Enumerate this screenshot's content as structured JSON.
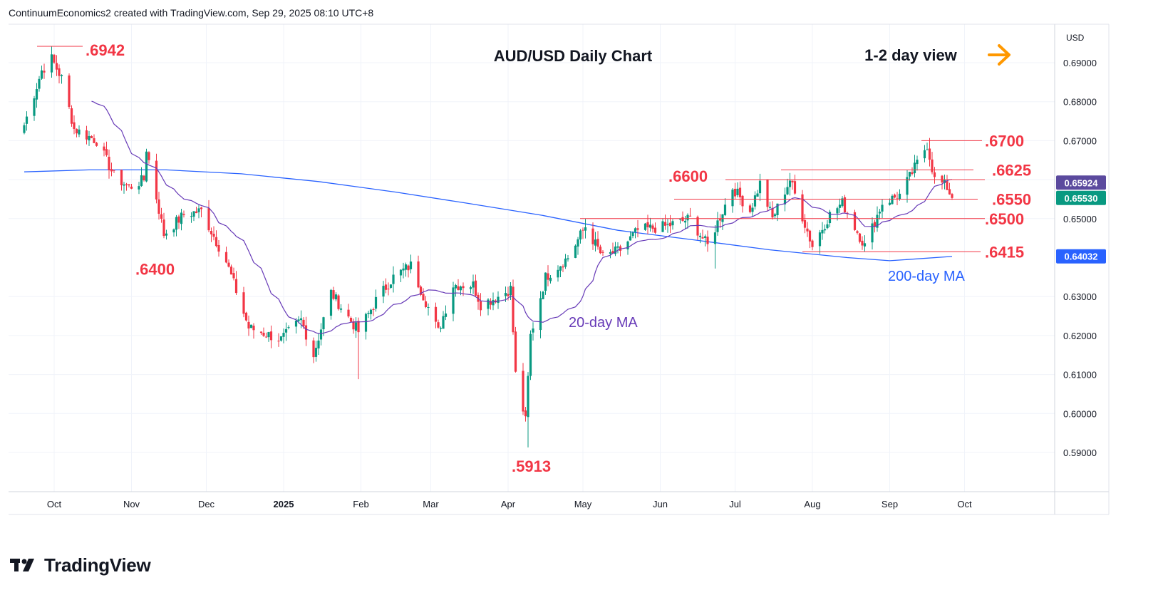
{
  "header": {
    "attribution": "ContinuumEconomics2 created with TradingView.com, Sep 29, 2025 08:10 UTC+8"
  },
  "footer": {
    "brand": "TradingView",
    "logo_icon": "tradingview-logo-icon"
  },
  "colors": {
    "up": "#089981",
    "down": "#f23645",
    "ma20": "#673ab7",
    "ma200": "#2962ff",
    "level": "#f23645",
    "arrow": "#ff9800",
    "tag_ma20": "#5b4a9e",
    "tag_price": "#089981",
    "tag_ma200": "#2962ff"
  },
  "chart_data": {
    "type": "candlestick",
    "title": "AUD/USD Daily Chart",
    "view_label": "1-2 day view",
    "view_icon": "arrow-right-icon",
    "currency_label": "USD",
    "ylim": [
      0.58,
      0.698
    ],
    "y_ticks": [
      "0.69000",
      "0.68000",
      "0.67000",
      "0.66000",
      "0.65000",
      "0.63000",
      "0.62000",
      "0.61000",
      "0.60000",
      "0.59000"
    ],
    "x_ticks": [
      "Oct",
      "Nov",
      "Dec",
      "2025",
      "Feb",
      "Mar",
      "Apr",
      "May",
      "Jun",
      "Jul",
      "Aug",
      "Sep",
      "Oct"
    ],
    "price_tags": [
      {
        "label": "0.65924",
        "value": 0.65924,
        "kind": "ma20"
      },
      {
        "label": "0.65530",
        "value": 0.6553,
        "kind": "price"
      },
      {
        "label": "0.64032",
        "value": 0.64032,
        "kind": "ma200"
      }
    ],
    "levels": [
      {
        "label": ".6942",
        "value": 0.6942
      },
      {
        "label": ".6700",
        "value": 0.67
      },
      {
        "label": ".6625",
        "value": 0.6625
      },
      {
        "label": ".6600",
        "value": 0.66
      },
      {
        "label": ".6550",
        "value": 0.655
      },
      {
        "label": ".6500",
        "value": 0.65
      },
      {
        "label": ".6415",
        "value": 0.6415
      },
      {
        "label": ".6400",
        "value": 0.64
      },
      {
        "label": ".5913",
        "value": 0.5913
      }
    ],
    "series_labels": {
      "ma20": "20-day MA",
      "ma200": "200-day MA"
    },
    "anchors": [
      [
        "2024-09-19",
        0.674
      ],
      [
        "2024-09-26",
        0.688
      ],
      [
        "2024-09-30",
        0.691
      ],
      [
        "2024-10-04",
        0.686
      ],
      [
        "2024-10-09",
        0.673
      ],
      [
        "2024-10-18",
        0.67
      ],
      [
        "2024-10-25",
        0.661
      ],
      [
        "2024-10-31",
        0.658
      ],
      [
        "2024-11-06",
        0.66
      ],
      [
        "2024-11-07",
        0.668
      ],
      [
        "2024-11-14",
        0.646
      ],
      [
        "2024-11-22",
        0.651
      ],
      [
        "2024-11-29",
        0.652
      ],
      [
        "2024-12-09",
        0.639
      ],
      [
        "2024-12-18",
        0.622
      ],
      [
        "2024-12-31",
        0.619
      ],
      [
        "2025-01-08",
        0.624
      ],
      [
        "2025-01-13",
        0.615
      ],
      [
        "2025-01-20",
        0.631
      ],
      [
        "2025-01-31",
        0.621
      ],
      [
        "2025-02-07",
        0.629
      ],
      [
        "2025-02-14",
        0.635
      ],
      [
        "2025-02-21",
        0.638
      ],
      [
        "2025-03-04",
        0.621
      ],
      [
        "2025-03-10",
        0.633
      ],
      [
        "2025-03-18",
        0.633
      ],
      [
        "2025-03-21",
        0.628
      ],
      [
        "2025-03-28",
        0.63
      ],
      [
        "2025-04-02",
        0.632
      ],
      [
        "2025-04-04",
        0.61
      ],
      [
        "2025-04-08",
        0.598
      ],
      [
        "2025-04-10",
        0.62
      ],
      [
        "2025-04-16",
        0.635
      ],
      [
        "2025-04-25",
        0.64
      ],
      [
        "2025-05-02",
        0.648
      ],
      [
        "2025-05-09",
        0.64
      ],
      [
        "2025-05-16",
        0.642
      ],
      [
        "2025-05-23",
        0.647
      ],
      [
        "2025-06-03",
        0.648
      ],
      [
        "2025-06-13",
        0.65
      ],
      [
        "2025-06-20",
        0.643
      ],
      [
        "2025-06-30",
        0.658
      ],
      [
        "2025-07-07",
        0.652
      ],
      [
        "2025-07-11",
        0.659
      ],
      [
        "2025-07-16",
        0.65
      ],
      [
        "2025-07-23",
        0.66
      ],
      [
        "2025-08-01",
        0.643
      ],
      [
        "2025-08-08",
        0.651
      ],
      [
        "2025-08-13",
        0.654
      ],
      [
        "2025-08-22",
        0.643
      ],
      [
        "2025-08-29",
        0.654
      ],
      [
        "2025-09-05",
        0.656
      ],
      [
        "2025-09-11",
        0.663
      ],
      [
        "2025-09-16",
        0.669
      ],
      [
        "2025-09-19",
        0.66
      ],
      [
        "2025-09-22",
        0.659
      ],
      [
        "2025-09-24",
        0.658
      ],
      [
        "2025-09-26",
        0.6553
      ]
    ],
    "extremes": [
      {
        "date": "2024-09-30",
        "high": 0.6942
      },
      {
        "date": "2025-04-09",
        "low": 0.5913
      },
      {
        "date": "2025-09-17",
        "high": 0.6707
      },
      {
        "date": "2025-01-31",
        "low": 0.6088
      },
      {
        "date": "2025-06-23",
        "low": 0.6372
      }
    ],
    "ma200": [
      [
        "2024-09-19",
        0.662
      ],
      [
        "2024-10-15",
        0.6625
      ],
      [
        "2024-11-15",
        0.6625
      ],
      [
        "2024-12-15",
        0.6615
      ],
      [
        "2025-01-15",
        0.6595
      ],
      [
        "2025-02-15",
        0.6568
      ],
      [
        "2025-03-15",
        0.654
      ],
      [
        "2025-04-15",
        0.6508
      ],
      [
        "2025-05-15",
        0.647
      ],
      [
        "2025-06-15",
        0.6445
      ],
      [
        "2025-07-15",
        0.642
      ],
      [
        "2025-08-15",
        0.64
      ],
      [
        "2025-09-01",
        0.6392
      ],
      [
        "2025-09-26",
        0.6403
      ]
    ]
  }
}
